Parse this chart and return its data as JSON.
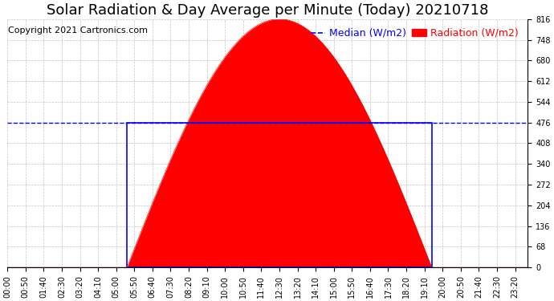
{
  "title": "Solar Radiation & Day Average per Minute (Today) 20210718",
  "copyright": "Copyright 2021 Cartronics.com",
  "legend_median_label": "Median (W/m2)",
  "legend_radiation_label": "Radiation (W/m2)",
  "y_min": 0.0,
  "y_max": 816.0,
  "y_ticks": [
    0.0,
    68.0,
    136.0,
    204.0,
    272.0,
    340.0,
    408.0,
    476.0,
    544.0,
    612.0,
    680.0,
    748.0,
    816.0
  ],
  "radiation_color": "#FF0000",
  "median_color": "#0000FF",
  "median_value": 476.0,
  "title_fontsize": 13,
  "copyright_fontsize": 8,
  "legend_fontsize": 9,
  "tick_fontsize": 7,
  "background_color": "#FFFFFF",
  "grid_color": "#AAAAAA",
  "sunrise_index": 66,
  "sunset_index": 234,
  "peak_index": 150,
  "peak_value": 816.0,
  "total_minutes": 288
}
